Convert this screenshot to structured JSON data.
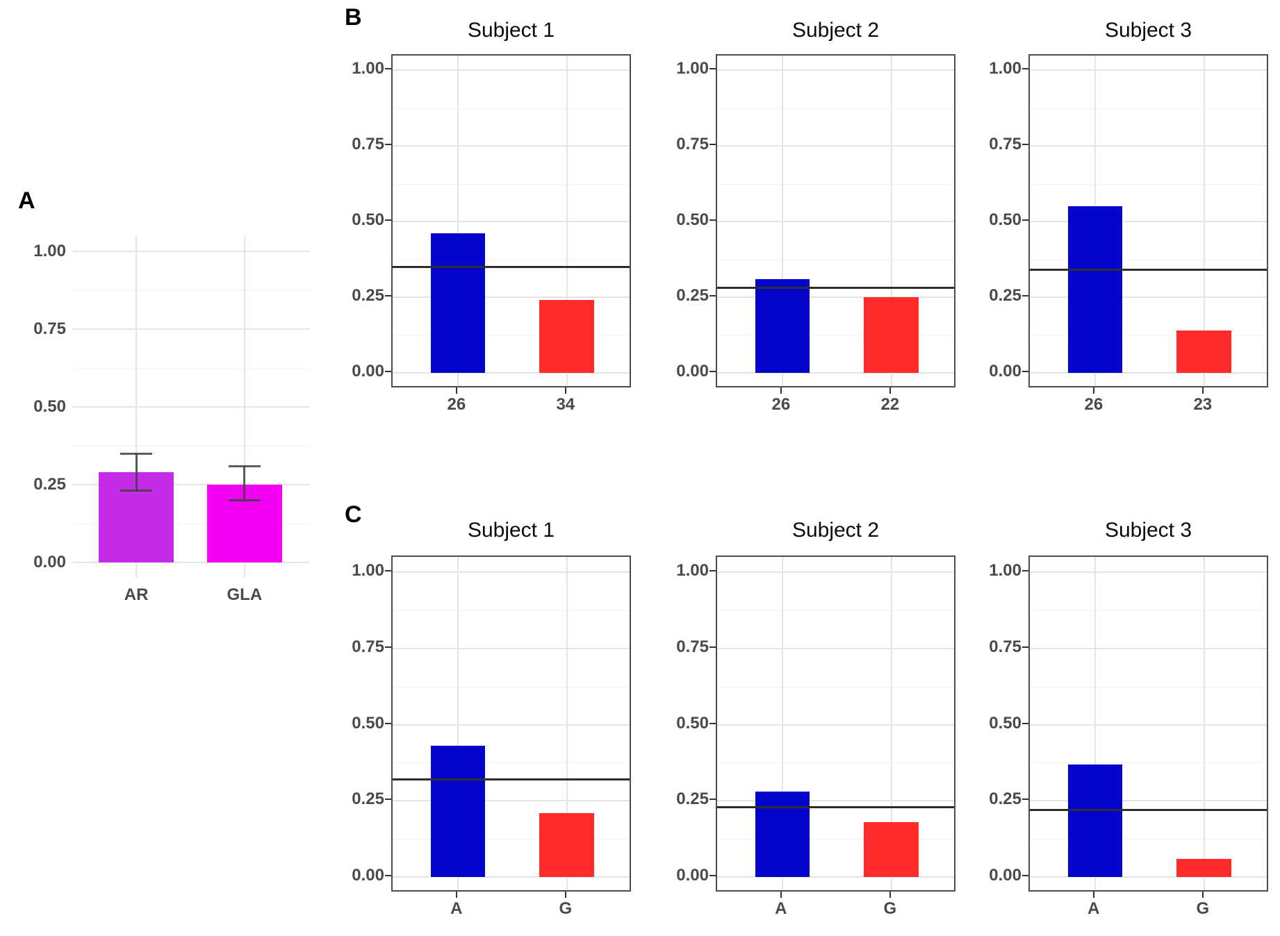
{
  "panels": {
    "a": {
      "label": "A"
    },
    "b": {
      "label": "B"
    },
    "c": {
      "label": "C"
    }
  },
  "axis": {
    "ytick_labels": [
      "0.00",
      "0.25",
      "0.50",
      "0.75",
      "1.00"
    ],
    "ytick_values": [
      0,
      0.25,
      0.5,
      0.75,
      1
    ]
  },
  "colors": {
    "bar_purple": "#c42ce9",
    "bar_magenta": "#f201f2",
    "bar_blue": "#0404cd",
    "bar_red": "#ff2b2b",
    "reference_line": "#2e2e2e",
    "error_bar": "#3f3f3f",
    "grid_major": "#e4e4e4",
    "grid_minor": "#f2f2f2",
    "panel_border": "#4d4d4d",
    "axis_text": "#4a4a4a",
    "title_text": "#0a0a0a"
  },
  "chart_data": [
    {
      "panel": "A",
      "type": "bar",
      "title": "",
      "categories": [
        "AR",
        "GLA"
      ],
      "values": [
        0.29,
        0.25
      ],
      "error_low": [
        0.23,
        0.2
      ],
      "error_high": [
        0.35,
        0.31
      ],
      "bar_colors": [
        "#c42ce9",
        "#f201f2"
      ],
      "ylim": [
        0,
        1.05
      ],
      "xlabel": "",
      "ylabel": "",
      "grid": "on",
      "legend": "none"
    },
    {
      "panel": "B",
      "type": "bar",
      "title": "Subject 1",
      "categories": [
        "26",
        "34"
      ],
      "values": [
        0.46,
        0.24
      ],
      "refline": 0.35,
      "bar_colors": [
        "#0404cd",
        "#ff2b2b"
      ],
      "ylim": [
        0,
        1.05
      ],
      "grid": "on",
      "legend": "none"
    },
    {
      "panel": "B",
      "type": "bar",
      "title": "Subject 2",
      "categories": [
        "26",
        "22"
      ],
      "values": [
        0.31,
        0.25
      ],
      "refline": 0.28,
      "bar_colors": [
        "#0404cd",
        "#ff2b2b"
      ],
      "ylim": [
        0,
        1.05
      ],
      "grid": "on",
      "legend": "none"
    },
    {
      "panel": "B",
      "type": "bar",
      "title": "Subject 3",
      "categories": [
        "26",
        "23"
      ],
      "values": [
        0.55,
        0.14
      ],
      "refline": 0.34,
      "bar_colors": [
        "#0404cd",
        "#ff2b2b"
      ],
      "ylim": [
        0,
        1.05
      ],
      "grid": "on",
      "legend": "none"
    },
    {
      "panel": "C",
      "type": "bar",
      "title": "Subject 1",
      "categories": [
        "A",
        "G"
      ],
      "values": [
        0.43,
        0.21
      ],
      "refline": 0.32,
      "bar_colors": [
        "#0404cd",
        "#ff2b2b"
      ],
      "ylim": [
        0,
        1.05
      ],
      "grid": "on",
      "legend": "none"
    },
    {
      "panel": "C",
      "type": "bar",
      "title": "Subject 2",
      "categories": [
        "A",
        "G"
      ],
      "values": [
        0.28,
        0.18
      ],
      "refline": 0.23,
      "bar_colors": [
        "#0404cd",
        "#ff2b2b"
      ],
      "ylim": [
        0,
        1.05
      ],
      "grid": "on",
      "legend": "none"
    },
    {
      "panel": "C",
      "type": "bar",
      "title": "Subject 3",
      "categories": [
        "A",
        "G"
      ],
      "values": [
        0.37,
        0.06
      ],
      "refline": 0.22,
      "bar_colors": [
        "#0404cd",
        "#ff2b2b"
      ],
      "ylim": [
        0,
        1.05
      ],
      "grid": "on",
      "legend": "none"
    }
  ]
}
